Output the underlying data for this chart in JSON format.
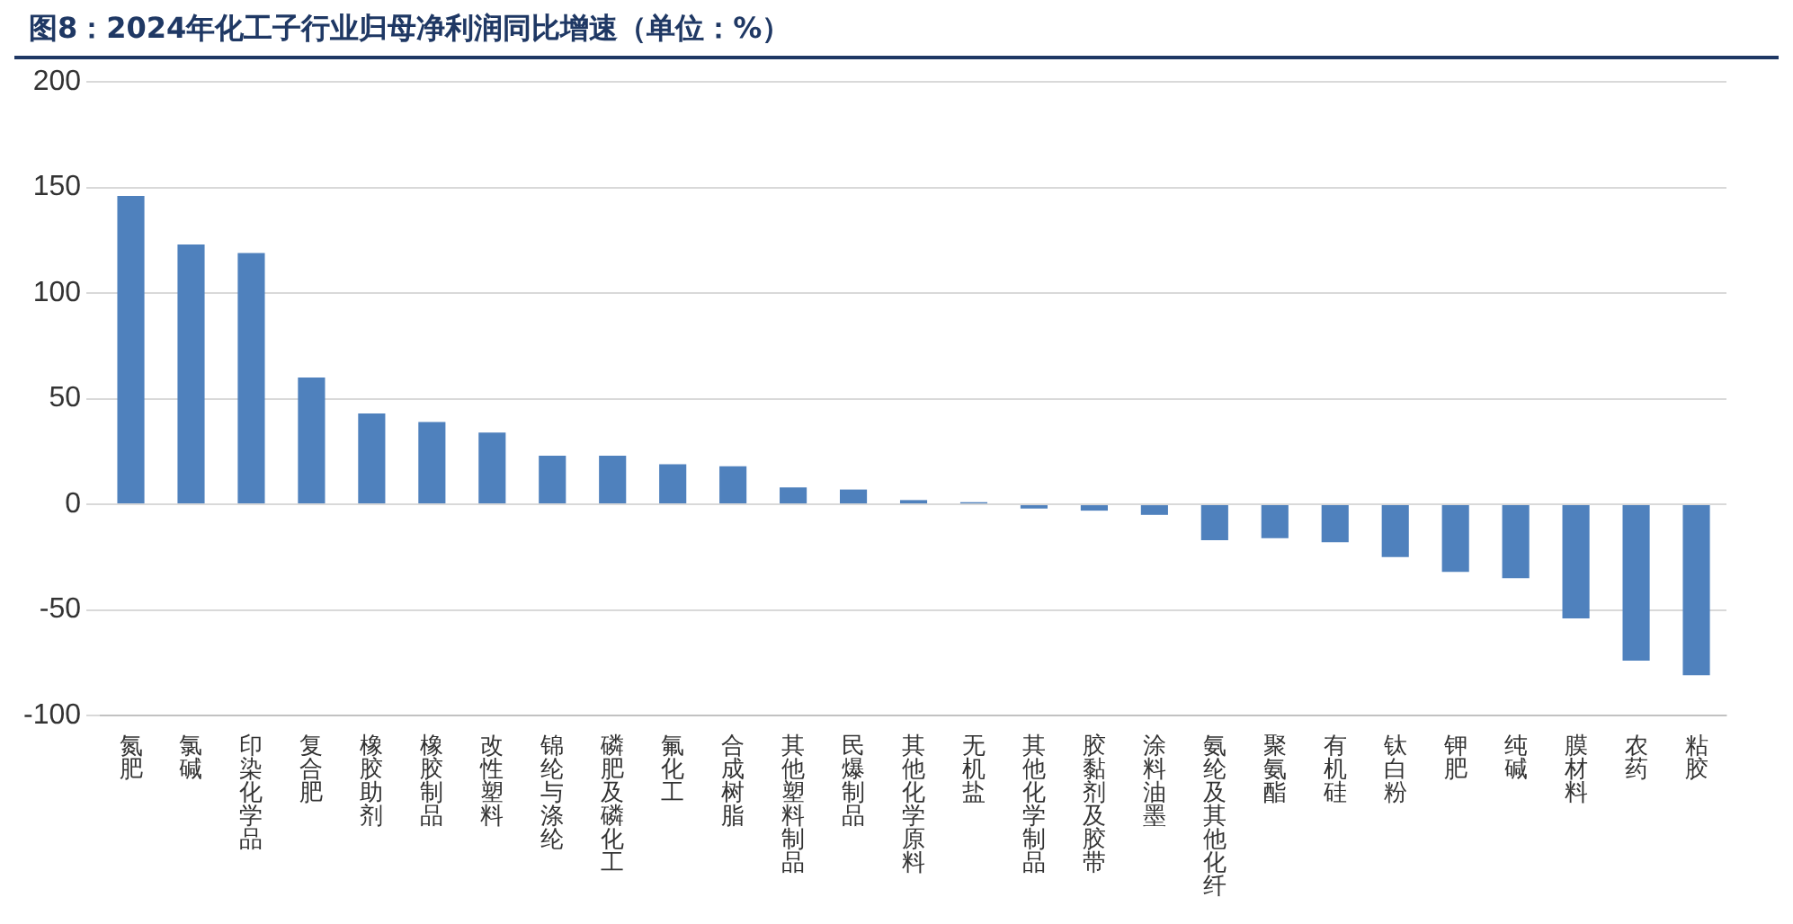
{
  "chart_data": {
    "type": "bar",
    "title": "图8：2024年化工子行业归母净利润同比增速（单位：%）",
    "categories": [
      "氮肥",
      "氯碱",
      "印染化学品",
      "复合肥",
      "橡胶助剂",
      "橡胶制品",
      "改性塑料",
      "锦纶与涤纶",
      "磷肥及磷化工",
      "氟化工",
      "合成树脂",
      "其他塑料制品",
      "民爆制品",
      "其他化学原料",
      "无机盐",
      "其他化学制品",
      "胶黏剂及胶带",
      "涂料油墨",
      "氨纶及其他化纤",
      "聚氨酯",
      "有机硅",
      "钛白粉",
      "钾肥",
      "纯碱",
      "膜材料",
      "农药",
      "粘胶"
    ],
    "values": [
      146,
      123,
      119,
      60,
      43,
      39,
      34,
      23,
      23,
      19,
      18,
      8,
      7,
      2,
      1,
      -2,
      -3,
      -5,
      -17,
      -16,
      -18,
      -25,
      -32,
      -35,
      -54,
      -74,
      -81
    ],
    "color": "#4f81bd",
    "ylim": [
      -100,
      200
    ],
    "yticks": [
      -100,
      -50,
      0,
      50,
      100,
      150,
      200
    ],
    "grid": "y",
    "legend": false
  }
}
